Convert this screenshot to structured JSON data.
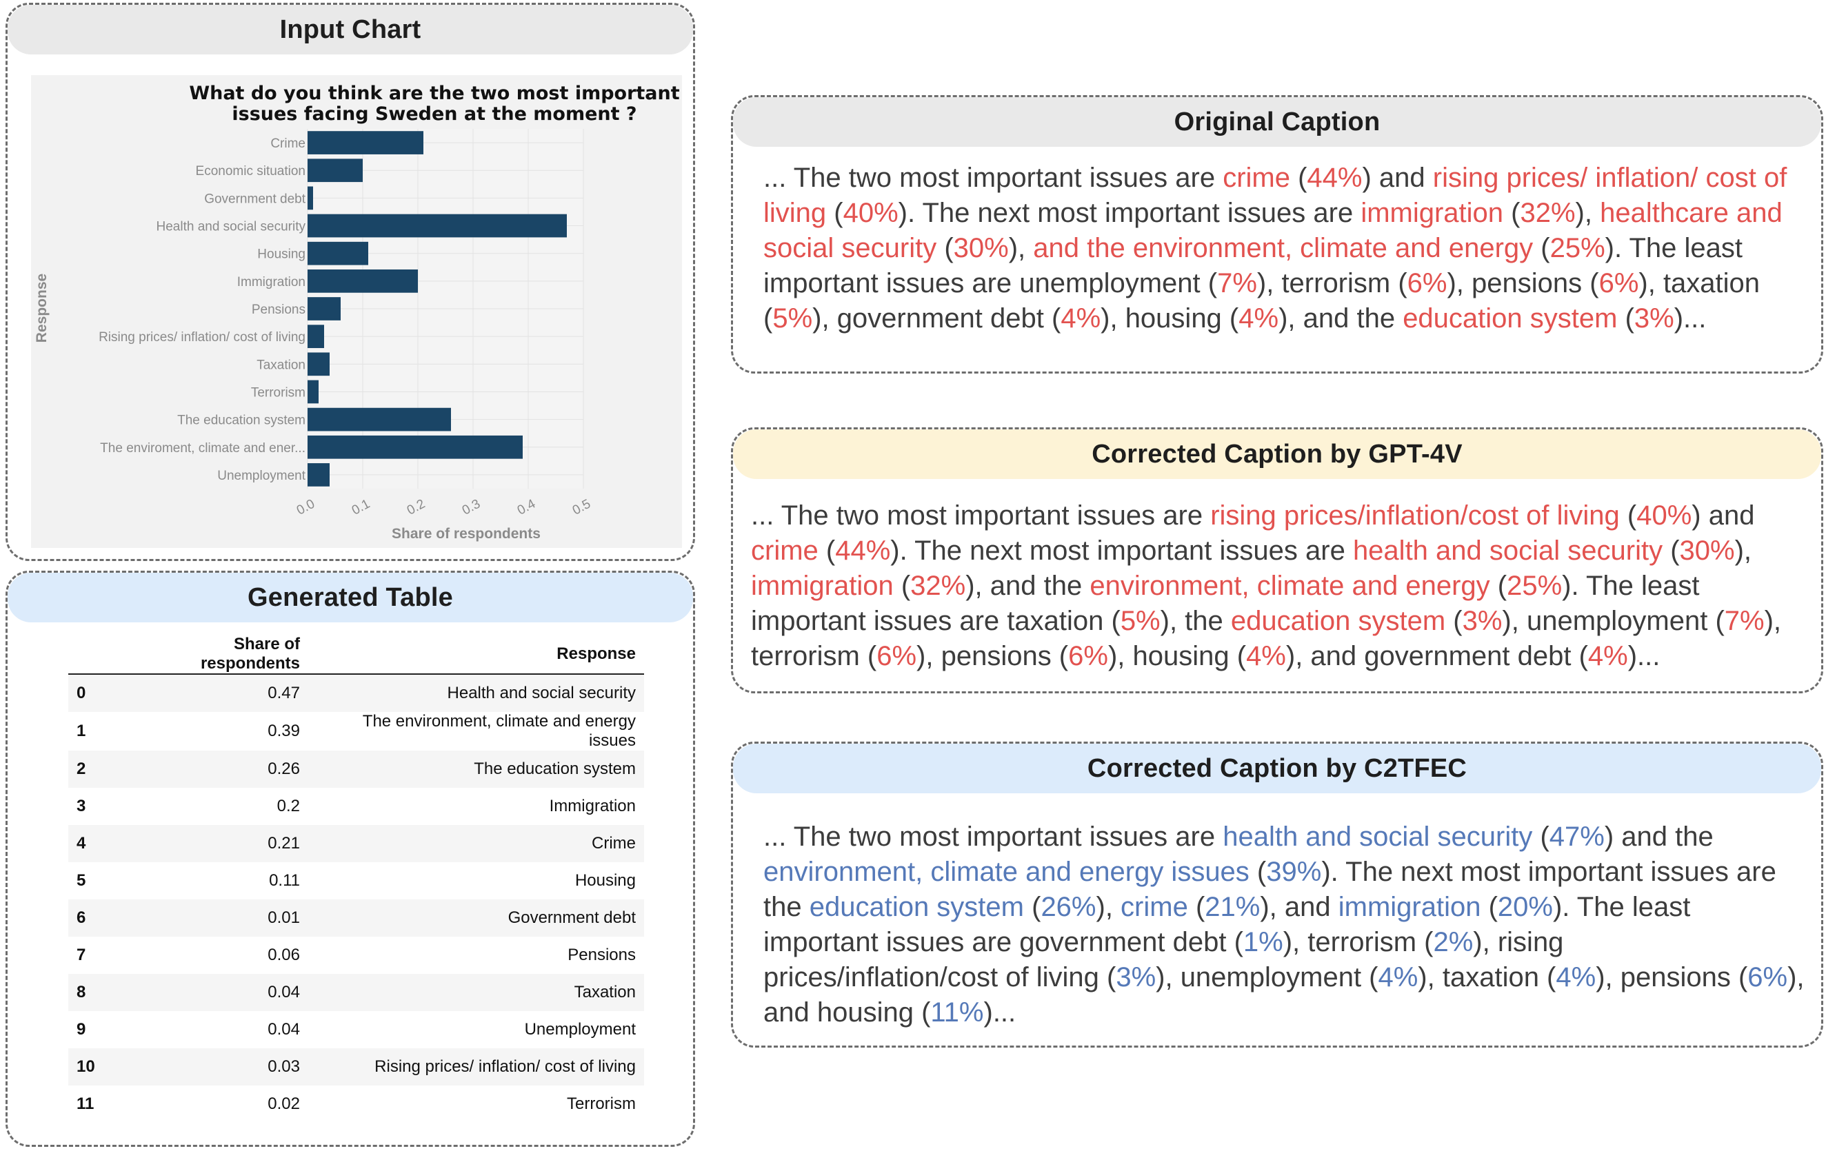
{
  "panels": {
    "input_chart": "Input Chart",
    "generated_table": "Generated Table",
    "original_caption": "Original Caption",
    "gpt4v_caption": "Corrected Caption by GPT-4V",
    "c2tfec_caption": "Corrected Caption by C2TFEC"
  },
  "colors": {
    "bar": "#1a4566",
    "highlight_red": "#e2524f",
    "highlight_blue": "#5579b8"
  },
  "chart_data": {
    "type": "bar",
    "orientation": "horizontal",
    "title_line1": "What do you think are the two most important",
    "title_line2": "issues facing Sweden at the moment ?",
    "xlabel": "Share of respondents",
    "ylabel": "Response",
    "xlim": [
      0,
      0.5
    ],
    "xticks": [
      "0.0",
      "0.1",
      "0.2",
      "0.3",
      "0.4",
      "0.5"
    ],
    "grid": true,
    "categories": [
      "Crime",
      "Economic situation",
      "Government debt",
      "Health and social security",
      "Housing",
      "Immigration",
      "Pensions",
      "Rising prices/ inflation/ cost of living",
      "Taxation",
      "Terrorism",
      "The education system",
      "The enviroment, climate and ener...",
      "Unemployment"
    ],
    "values": [
      0.21,
      0.1,
      0.01,
      0.47,
      0.11,
      0.2,
      0.06,
      0.03,
      0.04,
      0.02,
      0.26,
      0.39,
      0.04
    ]
  },
  "table": {
    "headers": [
      "",
      "Share of respondents",
      "Response"
    ],
    "rows": [
      [
        "0",
        "0.47",
        "Health and social security"
      ],
      [
        "1",
        "0.39",
        "The environment, climate and energy issues"
      ],
      [
        "2",
        "0.26",
        "The education system"
      ],
      [
        "3",
        "0.2",
        "Immigration"
      ],
      [
        "4",
        "0.21",
        "Crime"
      ],
      [
        "5",
        "0.11",
        "Housing"
      ],
      [
        "6",
        "0.01",
        "Government debt"
      ],
      [
        "7",
        "0.06",
        "Pensions"
      ],
      [
        "8",
        "0.04",
        "Taxation"
      ],
      [
        "9",
        "0.04",
        "Unemployment"
      ],
      [
        "10",
        "0.03",
        "Rising prices/ inflation/ cost of living"
      ],
      [
        "11",
        "0.02",
        "Terrorism"
      ]
    ]
  },
  "captions": {
    "original": [
      [
        "... The two most important issues are ",
        ""
      ],
      [
        "crime",
        "red"
      ],
      [
        " (",
        ""
      ],
      [
        "44%",
        "red"
      ],
      [
        ") and ",
        ""
      ],
      [
        "rising prices/ inflation/ cost of living",
        "red"
      ],
      [
        " (",
        ""
      ],
      [
        "40%",
        "red"
      ],
      [
        "). The next most important issues are ",
        ""
      ],
      [
        "immigration",
        "red"
      ],
      [
        " (",
        ""
      ],
      [
        "32%",
        "red"
      ],
      [
        "), ",
        ""
      ],
      [
        "healthcare and social security",
        "red"
      ],
      [
        " (",
        ""
      ],
      [
        "30%",
        "red"
      ],
      [
        "), ",
        ""
      ],
      [
        "and the environment, climate and energy",
        "red"
      ],
      [
        " (",
        ""
      ],
      [
        "25%",
        "red"
      ],
      [
        "). The least important issues are unemployment (",
        ""
      ],
      [
        "7%",
        "red"
      ],
      [
        "), terrorism (",
        ""
      ],
      [
        "6%",
        "red"
      ],
      [
        "), pensions (",
        ""
      ],
      [
        "6%",
        "red"
      ],
      [
        "), taxation (",
        ""
      ],
      [
        "5%",
        "red"
      ],
      [
        "), government debt (",
        ""
      ],
      [
        "4%",
        "red"
      ],
      [
        "), housing (",
        ""
      ],
      [
        "4%",
        "red"
      ],
      [
        "), and the ",
        ""
      ],
      [
        "education system",
        "red"
      ],
      [
        " (",
        ""
      ],
      [
        "3%",
        "red"
      ],
      [
        ")...",
        ""
      ]
    ],
    "gpt4v": [
      [
        "... The two most important issues are ",
        ""
      ],
      [
        "rising prices/inflation/cost of living",
        "red"
      ],
      [
        " (",
        ""
      ],
      [
        "40%",
        "red"
      ],
      [
        ") and ",
        ""
      ],
      [
        "crime",
        "red"
      ],
      [
        " (",
        ""
      ],
      [
        "44%",
        "red"
      ],
      [
        "). The next most important issues are ",
        ""
      ],
      [
        "health and social security",
        "red"
      ],
      [
        " (",
        ""
      ],
      [
        "30%",
        "red"
      ],
      [
        "), ",
        ""
      ],
      [
        "immigration",
        "red"
      ],
      [
        " (",
        ""
      ],
      [
        "32%",
        "red"
      ],
      [
        "), and the ",
        ""
      ],
      [
        "environment, climate and energy",
        "red"
      ],
      [
        " (",
        ""
      ],
      [
        "25%",
        "red"
      ],
      [
        "). The least important issues are taxation (",
        ""
      ],
      [
        "5%",
        "red"
      ],
      [
        "), the ",
        ""
      ],
      [
        "education system",
        "red"
      ],
      [
        " (",
        ""
      ],
      [
        "3%",
        "red"
      ],
      [
        "), unemployment (",
        ""
      ],
      [
        "7%",
        "red"
      ],
      [
        "), terrorism (",
        ""
      ],
      [
        "6%",
        "red"
      ],
      [
        "), pensions (",
        ""
      ],
      [
        "6%",
        "red"
      ],
      [
        "), housing (",
        ""
      ],
      [
        "4%",
        "red"
      ],
      [
        "), and government debt (",
        ""
      ],
      [
        "4%",
        "red"
      ],
      [
        ")...",
        ""
      ]
    ],
    "c2tfec": [
      [
        "... The two most important issues are ",
        ""
      ],
      [
        "health and social security",
        "blue"
      ],
      [
        " (",
        ""
      ],
      [
        "47%",
        "blue"
      ],
      [
        ") and the ",
        ""
      ],
      [
        "environment, climate and energy issues",
        "blue"
      ],
      [
        " (",
        ""
      ],
      [
        "39%",
        "blue"
      ],
      [
        "). The next most important issues are the ",
        ""
      ],
      [
        "education system",
        "blue"
      ],
      [
        " (",
        ""
      ],
      [
        "26%",
        "blue"
      ],
      [
        "), ",
        ""
      ],
      [
        "crime",
        "blue"
      ],
      [
        " (",
        ""
      ],
      [
        "21%",
        "blue"
      ],
      [
        "), and ",
        ""
      ],
      [
        "immigration",
        "blue"
      ],
      [
        " (",
        ""
      ],
      [
        "20%",
        "blue"
      ],
      [
        "). The least important issues are government debt (",
        ""
      ],
      [
        "1%",
        "blue"
      ],
      [
        "), terrorism (",
        ""
      ],
      [
        "2%",
        "blue"
      ],
      [
        "), rising prices/inflation/cost of living (",
        ""
      ],
      [
        "3%",
        "blue"
      ],
      [
        "), unemployment (",
        ""
      ],
      [
        "4%",
        "blue"
      ],
      [
        "), taxation (",
        ""
      ],
      [
        "4%",
        "blue"
      ],
      [
        "), pensions (",
        ""
      ],
      [
        "6%",
        "blue"
      ],
      [
        "), and housing (",
        ""
      ],
      [
        "11%",
        "blue"
      ],
      [
        ")...",
        ""
      ]
    ]
  }
}
